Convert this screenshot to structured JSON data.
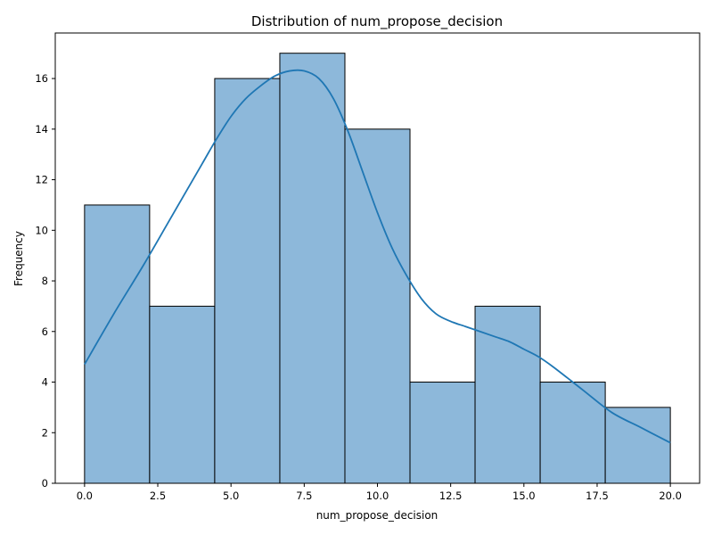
{
  "chart_data": {
    "type": "histogram",
    "title": "Distribution of num_propose_decision",
    "xlabel": "num_propose_decision",
    "ylabel": "Frequency",
    "xlim": [
      -1,
      21
    ],
    "ylim": [
      0,
      17.8
    ],
    "bins": [
      {
        "x0": 0.0,
        "x1": 2.222,
        "count": 11
      },
      {
        "x0": 2.222,
        "x1": 4.444,
        "count": 7
      },
      {
        "x0": 4.444,
        "x1": 6.667,
        "count": 16
      },
      {
        "x0": 6.667,
        "x1": 8.889,
        "count": 17
      },
      {
        "x0": 8.889,
        "x1": 11.111,
        "count": 14
      },
      {
        "x0": 11.111,
        "x1": 13.333,
        "count": 4
      },
      {
        "x0": 13.333,
        "x1": 15.556,
        "count": 7
      },
      {
        "x0": 15.556,
        "x1": 17.778,
        "count": 4
      },
      {
        "x0": 17.778,
        "x1": 20.0,
        "count": 3
      }
    ],
    "xticks": [
      {
        "value": 0.0,
        "label": "0.0"
      },
      {
        "value": 2.5,
        "label": "2.5"
      },
      {
        "value": 5.0,
        "label": "5.0"
      },
      {
        "value": 7.5,
        "label": "7.5"
      },
      {
        "value": 10.0,
        "label": "10.0"
      },
      {
        "value": 12.5,
        "label": "12.5"
      },
      {
        "value": 15.0,
        "label": "15.0"
      },
      {
        "value": 17.5,
        "label": "17.5"
      },
      {
        "value": 20.0,
        "label": "20.0"
      }
    ],
    "yticks": [
      {
        "value": 0,
        "label": "0"
      },
      {
        "value": 2,
        "label": "2"
      },
      {
        "value": 4,
        "label": "4"
      },
      {
        "value": 6,
        "label": "6"
      },
      {
        "value": 8,
        "label": "8"
      },
      {
        "value": 10,
        "label": "10"
      },
      {
        "value": 12,
        "label": "12"
      },
      {
        "value": 14,
        "label": "14"
      },
      {
        "value": 16,
        "label": "16"
      }
    ],
    "kde": {
      "x": [
        0.0,
        1.0,
        2.0,
        3.0,
        4.0,
        4.5,
        5.0,
        5.5,
        6.0,
        6.5,
        7.0,
        7.5,
        8.0,
        8.5,
        9.0,
        9.5,
        10.0,
        10.5,
        11.0,
        11.5,
        12.0,
        12.5,
        13.0,
        13.5,
        14.0,
        14.5,
        15.0,
        15.5,
        16.0,
        17.0,
        18.0,
        19.0,
        20.0
      ],
      "y": [
        4.7,
        6.7,
        8.6,
        10.6,
        12.6,
        13.6,
        14.5,
        15.2,
        15.7,
        16.1,
        16.3,
        16.3,
        16.0,
        15.2,
        13.9,
        12.3,
        10.7,
        9.3,
        8.2,
        7.3,
        6.7,
        6.4,
        6.2,
        6.0,
        5.8,
        5.6,
        5.3,
        5.0,
        4.6,
        3.7,
        2.8,
        2.2,
        1.6
      ]
    },
    "colors": {
      "bar_fill": "#8db8da",
      "bar_edge": "#000000",
      "kde_line": "#1f77b4"
    },
    "grid": false,
    "legend": "none"
  }
}
